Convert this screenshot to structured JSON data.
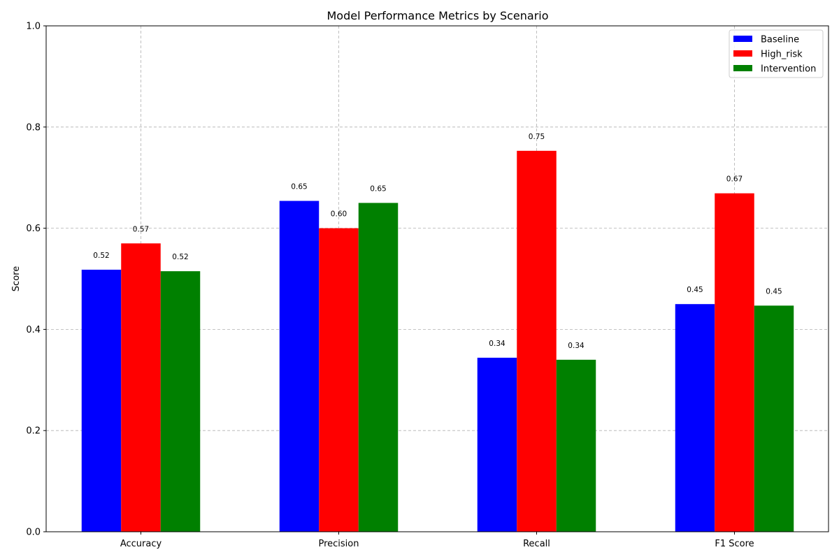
{
  "chart_data": {
    "type": "bar",
    "title": "Model Performance Metrics by Scenario",
    "xlabel": "",
    "ylabel": "Score",
    "ylim": [
      0,
      1.0
    ],
    "yticks": [
      "0.0",
      "0.2",
      "0.4",
      "0.6",
      "0.8",
      "1.0"
    ],
    "ytick_values": [
      0,
      0.2,
      0.4,
      0.6,
      0.8,
      1.0
    ],
    "grid": true,
    "legend_position": "top-right",
    "categories": [
      "Accuracy",
      "Precision",
      "Recall",
      "F1 Score"
    ],
    "series": [
      {
        "name": "Baseline",
        "color": "#0000ff",
        "values": [
          0.518,
          0.654,
          0.344,
          0.45
        ],
        "labels": [
          "0.52",
          "0.65",
          "0.34",
          "0.45"
        ]
      },
      {
        "name": "High_risk",
        "color": "#ff0000",
        "values": [
          0.57,
          0.6,
          0.753,
          0.669
        ],
        "labels": [
          "0.57",
          "0.60",
          "0.75",
          "0.67"
        ]
      },
      {
        "name": "Intervention",
        "color": "#008000",
        "values": [
          0.515,
          0.65,
          0.34,
          0.447
        ],
        "labels": [
          "0.52",
          "0.65",
          "0.34",
          "0.45"
        ]
      }
    ]
  }
}
